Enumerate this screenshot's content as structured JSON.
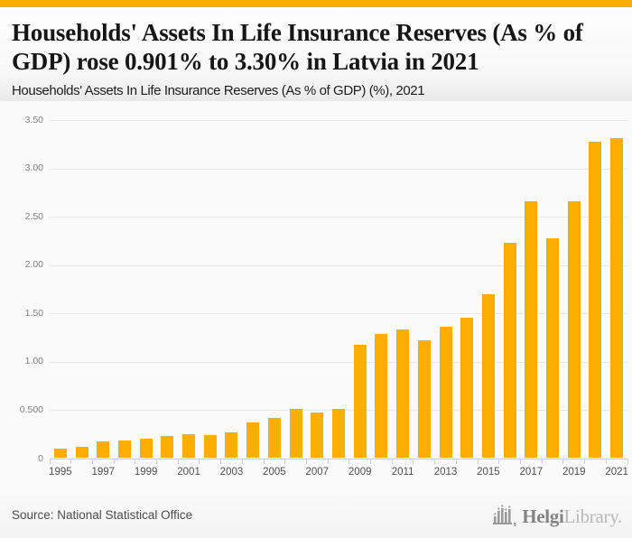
{
  "page": {
    "accent_bar_color": "#f8ae00",
    "background_color": "#fafafa"
  },
  "header": {
    "title": "Households' Assets In Life Insurance Reserves (As % of GDP) rose 0.901% to 3.30% in Latvia in 2021",
    "subtitle": "Households' Assets In Life Insurance Reserves (As % of GDP) (%), 2021"
  },
  "chart_data": {
    "type": "bar",
    "title": "Households' Assets In Life Insurance Reserves (As % of GDP) (%), 2021",
    "xlabel": "",
    "ylabel": "",
    "categories": [
      "1995",
      "1996",
      "1997",
      "1998",
      "1999",
      "2000",
      "2001",
      "2002",
      "2003",
      "2004",
      "2005",
      "2006",
      "2007",
      "2008",
      "2009",
      "2010",
      "2011",
      "2012",
      "2013",
      "2014",
      "2015",
      "2016",
      "2017",
      "2018",
      "2019",
      "2020",
      "2021"
    ],
    "values": [
      0.09,
      0.11,
      0.17,
      0.18,
      0.2,
      0.22,
      0.24,
      0.23,
      0.26,
      0.36,
      0.41,
      0.5,
      0.47,
      0.5,
      1.17,
      1.28,
      1.33,
      1.21,
      1.35,
      1.45,
      1.69,
      2.22,
      2.65,
      2.27,
      2.65,
      3.27,
      3.3
    ],
    "ylim": [
      0,
      3.5
    ],
    "y_tick_labels": [
      "3.50",
      "3.00",
      "2.50",
      "2.00",
      "1.50",
      "1.00",
      "0.500",
      "0"
    ],
    "x_tick_labels": [
      "1995",
      "1997",
      "1999",
      "2001",
      "2003",
      "2005",
      "2007",
      "2009",
      "2011",
      "2013",
      "2015",
      "2017",
      "2019",
      "2021"
    ],
    "x_label_step": 2,
    "grid": true,
    "legend_position": "none",
    "bar_color": "#fbae00",
    "grid_color": "#e8e8e8",
    "axis_color": "#c7cde7"
  },
  "footer": {
    "source": "Source: National Statistical Office",
    "logo": {
      "icon": "helgi-skyline-chart-icon",
      "brand_bold": "Helgi",
      "brand_light": "Library."
    }
  }
}
